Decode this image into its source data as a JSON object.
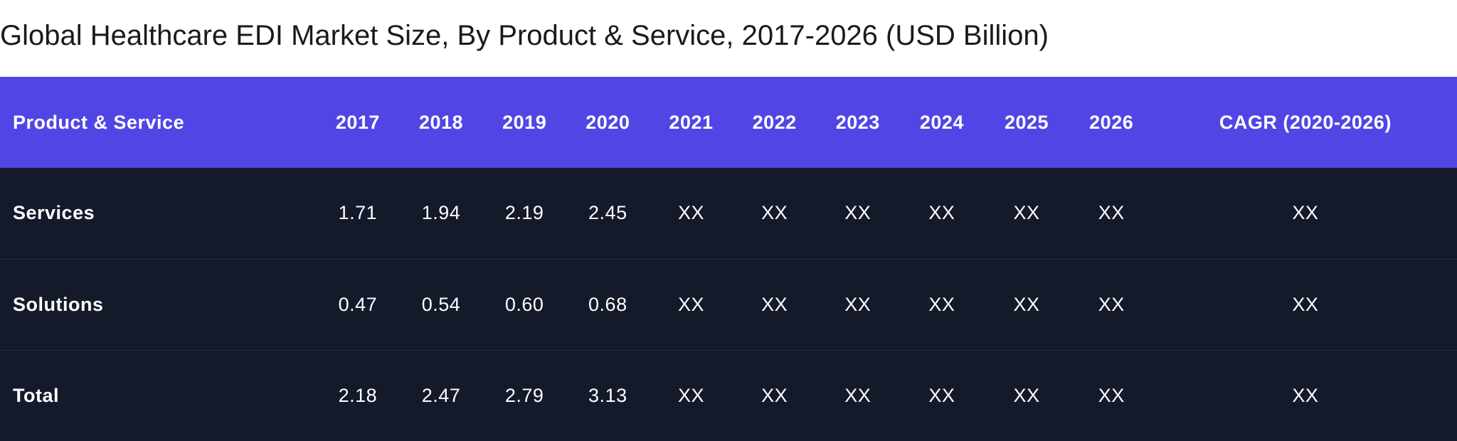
{
  "title": "Global Healthcare EDI Market Size, By Product & Service, 2017-2026 (USD Billion)",
  "table": {
    "headers": [
      "Product & Service",
      "2017",
      "2018",
      "2019",
      "2020",
      "2021",
      "2022",
      "2023",
      "2024",
      "2025",
      "2026",
      "CAGR (2020-2026)"
    ],
    "rows": [
      [
        "Services",
        "1.71",
        "1.94",
        "2.19",
        "2.45",
        "XX",
        "XX",
        "XX",
        "XX",
        "XX",
        "XX",
        "XX"
      ],
      [
        "Solutions",
        "0.47",
        "0.54",
        "0.60",
        "0.68",
        "XX",
        "XX",
        "XX",
        "XX",
        "XX",
        "XX",
        "XX"
      ],
      [
        "Total",
        "2.18",
        "2.47",
        "2.79",
        "3.13",
        "XX",
        "XX",
        "XX",
        "XX",
        "XX",
        "XX",
        "XX"
      ]
    ]
  },
  "colors": {
    "header_bg": "#5146e5",
    "body_bg": "#141a2a",
    "text": "#ffffff"
  }
}
